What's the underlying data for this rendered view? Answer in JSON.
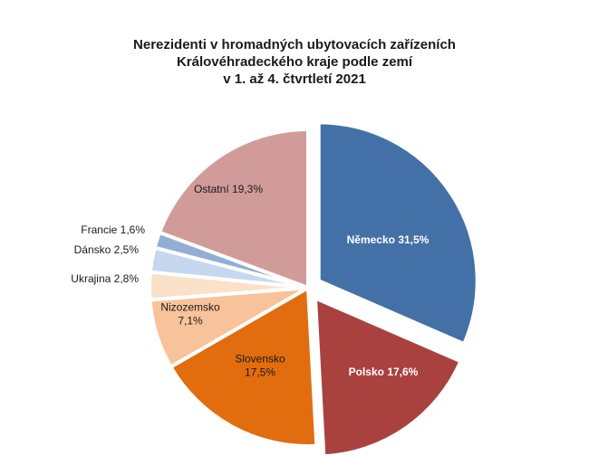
{
  "chart_data": {
    "type": "pie",
    "title_lines": [
      "Nerezidenti v hromadných ubytovacích zařízeních",
      "Královéhradeckého kraje podle zemí",
      "v 1. až 4. čtvrtletí 2021"
    ],
    "slices": [
      {
        "name": "Německo",
        "value": 31.5,
        "label": [
          "Německo 31,5%"
        ],
        "color": "#4470a8",
        "text_color": "#ffffff",
        "bold": true,
        "exploded": true
      },
      {
        "name": "Polsko",
        "value": 17.6,
        "label": [
          "Polsko 17,6%"
        ],
        "color": "#a9423f",
        "text_color": "#ffffff",
        "bold": true,
        "exploded": true
      },
      {
        "name": "Slovensko",
        "value": 17.5,
        "label": [
          "Slovensko",
          "17,5%"
        ],
        "color": "#e26d0f",
        "text_color": "#1a1a1a",
        "bold": false,
        "exploded": false
      },
      {
        "name": "Nizozemsko",
        "value": 7.1,
        "label": [
          "Nizozemsko",
          "7,1%"
        ],
        "color": "#f8c39b",
        "text_color": "#1a1a1a",
        "bold": false,
        "exploded": false
      },
      {
        "name": "Ukrajina",
        "value": 2.8,
        "label": [
          "Ukrajina 2,8%"
        ],
        "color": "#fbe0ca",
        "text_color": "#1a1a1a",
        "bold": false,
        "exploded": false
      },
      {
        "name": "Dánsko",
        "value": 2.5,
        "label": [
          "Dánsko 2,5%"
        ],
        "color": "#c6d8ef",
        "text_color": "#1a1a1a",
        "bold": false,
        "exploded": false
      },
      {
        "name": "Francie",
        "value": 1.6,
        "label": [
          "Francie 1,6%"
        ],
        "color": "#93aed4",
        "text_color": "#1a1a1a",
        "bold": false,
        "exploded": false
      },
      {
        "name": "Ostatní",
        "value": 19.3,
        "label": [
          "Ostatní 19,3%"
        ],
        "color": "#d19b99",
        "text_color": "#1a1a1a",
        "bold": false,
        "exploded": false
      }
    ]
  }
}
